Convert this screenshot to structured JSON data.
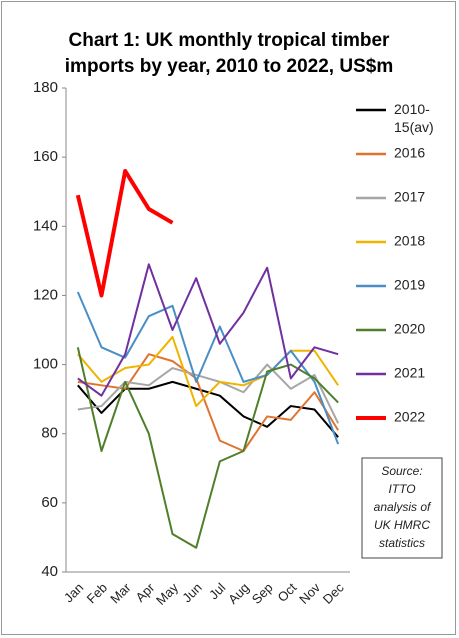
{
  "chart_data": {
    "type": "line",
    "title": "Chart 1: UK monthly tropical timber imports by year, 2010 to 2022, US$m",
    "categories": [
      "Jan",
      "Feb",
      "Mar",
      "Apr",
      "May",
      "Jun",
      "Jul",
      "Aug",
      "Sep",
      "Oct",
      "Nov",
      "Dec"
    ],
    "ylim": [
      40,
      180
    ],
    "yticks": [
      40,
      60,
      80,
      100,
      120,
      140,
      160,
      180
    ],
    "grid": false,
    "legend": "right",
    "series": [
      {
        "name": "2010-15(av)",
        "color": "#000000",
        "values": [
          94,
          86,
          93,
          93,
          95,
          93,
          91,
          85,
          82,
          88,
          87,
          79
        ]
      },
      {
        "name": "2016",
        "color": "#e0742f",
        "values": [
          95,
          94,
          93,
          103,
          101,
          96,
          78,
          75,
          85,
          84,
          92,
          81
        ]
      },
      {
        "name": "2017",
        "color": "#a6a6a6",
        "values": [
          87,
          88,
          95,
          94,
          99,
          97,
          95,
          92,
          100,
          93,
          97,
          83
        ]
      },
      {
        "name": "2018",
        "color": "#f0b400",
        "values": [
          103,
          95,
          99,
          100,
          108,
          88,
          95,
          94,
          97,
          104,
          104,
          94
        ]
      },
      {
        "name": "2019",
        "color": "#4a8ec6",
        "values": [
          121,
          105,
          102,
          114,
          117,
          95,
          111,
          95,
          97,
          104,
          95,
          77
        ]
      },
      {
        "name": "2020",
        "color": "#4f7f2a",
        "values": [
          105,
          75,
          95,
          80,
          51,
          47,
          72,
          75,
          98,
          100,
          96,
          89
        ]
      },
      {
        "name": "2021",
        "color": "#7030a0",
        "values": [
          96,
          91,
          103,
          129,
          110,
          125,
          106,
          115,
          128,
          96,
          105,
          103
        ]
      },
      {
        "name": "2022",
        "color": "#ff0000",
        "values": [
          149,
          120,
          156,
          145,
          141,
          null,
          null,
          null,
          null,
          null,
          null,
          null
        ]
      }
    ],
    "source": [
      "Source:",
      "ITTO",
      "analysis of",
      "UK HMRC",
      "statistics"
    ]
  }
}
